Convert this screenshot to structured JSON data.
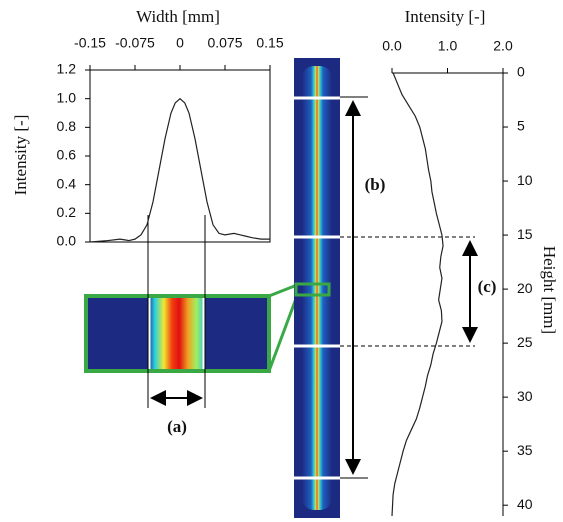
{
  "chart_data": [
    {
      "type": "line",
      "x_label": "Width [mm]",
      "y_label": "Intensity [-]",
      "x": [
        -0.15,
        -0.12,
        -0.1,
        -0.085,
        -0.075,
        -0.065,
        -0.055,
        -0.045,
        -0.035,
        -0.025,
        -0.015,
        -0.008,
        0,
        0.008,
        0.015,
        0.025,
        0.035,
        0.045,
        0.055,
        0.065,
        0.075,
        0.09,
        0.1,
        0.11,
        0.12,
        0.135,
        0.15
      ],
      "series": [
        {
          "color": "#222222",
          "values": [
            0.0,
            0.01,
            0.02,
            0.01,
            0.02,
            0.05,
            0.12,
            0.28,
            0.5,
            0.72,
            0.9,
            0.97,
            1.0,
            0.97,
            0.9,
            0.72,
            0.5,
            0.28,
            0.12,
            0.06,
            0.05,
            0.06,
            0.05,
            0.04,
            0.03,
            0.02,
            0.02
          ]
        }
      ],
      "xlim": [
        -0.15,
        0.15
      ],
      "xticks": [
        -0.15,
        -0.075,
        0,
        0.075,
        0.15
      ],
      "ylim": [
        0,
        1.2
      ],
      "yticks": [
        {
          "value": 0,
          "label": "0.0"
        },
        0.2,
        0.4,
        0.6,
        0.8,
        {
          "value": 1,
          "label": "1.0"
        },
        1.2
      ],
      "x_axis_side": "top",
      "y_axis_side": "left",
      "frame": true
    },
    {
      "type": "line",
      "x_label": "Intensity [-]",
      "y_label": "Height [mm]",
      "y": [
        0,
        1,
        2,
        3,
        4,
        5,
        6,
        7,
        8,
        9,
        10,
        11,
        12,
        13,
        14,
        15,
        16,
        17,
        18,
        19,
        20,
        21,
        22,
        23,
        24,
        25,
        26,
        27,
        28,
        29,
        30,
        31,
        32,
        33,
        34,
        35,
        36,
        37,
        38,
        39,
        40,
        41
      ],
      "series": [
        {
          "color": "#222222",
          "values": [
            0.02,
            0.1,
            0.18,
            0.3,
            0.42,
            0.5,
            0.55,
            0.6,
            0.63,
            0.66,
            0.7,
            0.72,
            0.76,
            0.8,
            0.85,
            0.9,
            0.92,
            0.88,
            0.86,
            0.9,
            0.87,
            0.84,
            0.89,
            0.9,
            0.85,
            0.8,
            0.74,
            0.7,
            0.64,
            0.6,
            0.55,
            0.5,
            0.44,
            0.35,
            0.26,
            0.2,
            0.15,
            0.1,
            0.05,
            0.02,
            0.01,
            0.0
          ]
        }
      ],
      "xlim": [
        0,
        2
      ],
      "xticks": [
        {
          "value": 0,
          "label": "0.0"
        },
        {
          "value": 1,
          "label": "1.0"
        },
        {
          "value": 2,
          "label": "2.0"
        }
      ],
      "ylim": [
        0,
        41
      ],
      "yticks": [
        0,
        5,
        10,
        15,
        20,
        25,
        30,
        35,
        40
      ],
      "x_axis_side": "top",
      "y_axis_side": "right",
      "y_inverted": true,
      "frame": false
    }
  ],
  "annotations": {
    "a": "(a)",
    "b": "(b)",
    "c": "(c)"
  }
}
